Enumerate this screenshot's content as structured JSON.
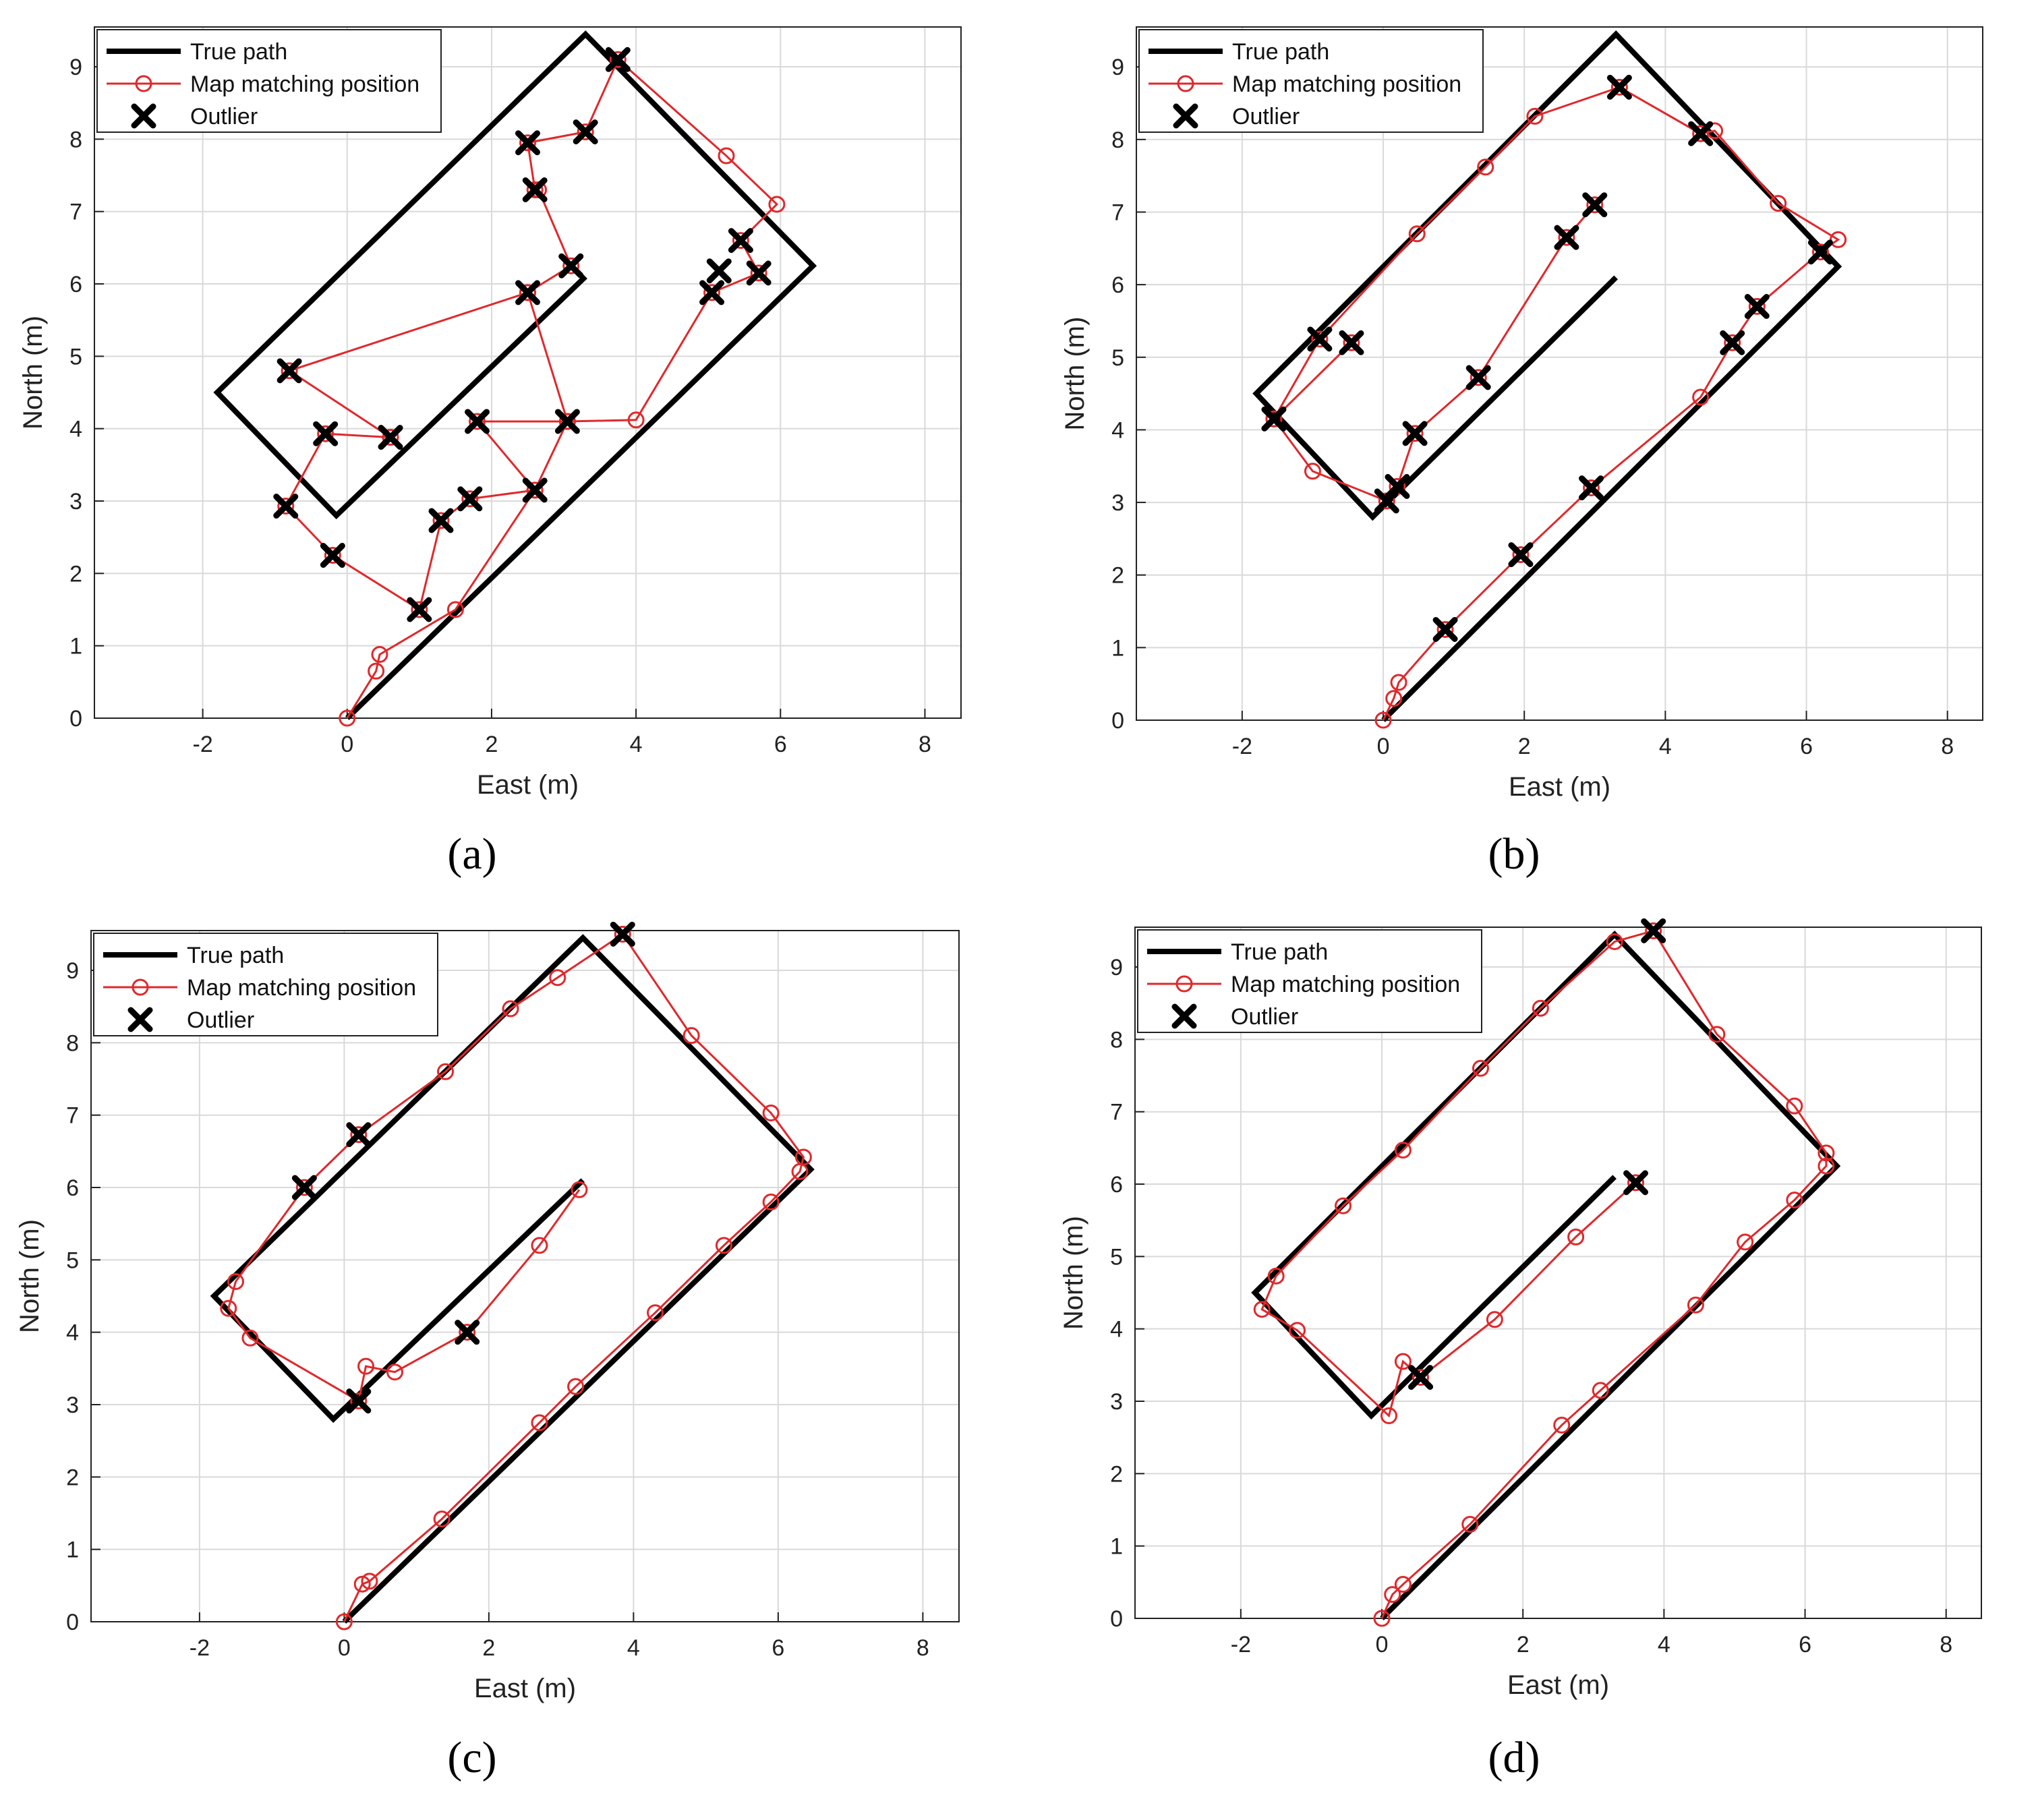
{
  "colors": {
    "true_path": "#000000",
    "map_matching": "#e0282b",
    "outlier": "#000000",
    "grid": "#d9d9d9",
    "axes": "#222222"
  },
  "true_path": [
    [
      0,
      0
    ],
    [
      6.45,
      6.25
    ],
    [
      3.3,
      9.45
    ],
    [
      -1.8,
      4.5
    ],
    [
      -0.15,
      2.8
    ],
    [
      3.3,
      6.1
    ]
  ],
  "chart_data": [
    {
      "panel": "(a)",
      "type": "line",
      "xlabel": "East (m)",
      "ylabel": "North (m)",
      "xlim": [
        -3.5,
        8.5
      ],
      "ylim": [
        0,
        9.55
      ],
      "xticks": [
        -2,
        0,
        2,
        4,
        6,
        8
      ],
      "yticks": [
        0,
        1,
        2,
        3,
        4,
        5,
        6,
        7,
        8,
        9
      ],
      "grid": true,
      "legend": "top-left",
      "legend_entries": [
        "True path",
        "Map matching position",
        "Outlier"
      ],
      "map_matching": [
        [
          0,
          0
        ],
        [
          0.4,
          0.65
        ],
        [
          0.45,
          0.88
        ],
        [
          1.5,
          1.5
        ],
        [
          2.6,
          3.15
        ],
        [
          1.8,
          4.1
        ],
        [
          3.05,
          4.1
        ],
        [
          4,
          4.12
        ],
        [
          5.05,
          5.88
        ],
        [
          5.7,
          6.15
        ],
        [
          5.45,
          6.6
        ],
        [
          5.95,
          7.1
        ],
        [
          5.25,
          7.77
        ],
        [
          3.75,
          9.1
        ],
        [
          3.3,
          8.1
        ],
        [
          2.5,
          7.95
        ],
        [
          2.6,
          7.3
        ],
        [
          2.65,
          7.3
        ],
        [
          3.1,
          6.25
        ],
        [
          2.5,
          5.88
        ],
        [
          -0.8,
          4.8
        ],
        [
          0.6,
          3.88
        ],
        [
          -0.3,
          3.93
        ],
        [
          -0.85,
          2.93
        ],
        [
          -0.2,
          2.25
        ],
        [
          1,
          1.5
        ],
        [
          1.3,
          2.73
        ],
        [
          1.7,
          3.03
        ],
        [
          2.6,
          3.15
        ],
        [
          3.05,
          4.1
        ],
        [
          2.5,
          5.88
        ]
      ],
      "outliers": [
        [
          1,
          1.5
        ],
        [
          1.3,
          2.73
        ],
        [
          1.7,
          3.03
        ],
        [
          2.6,
          3.15
        ],
        [
          1.8,
          4.1
        ],
        [
          3.05,
          4.1
        ],
        [
          5.05,
          5.88
        ],
        [
          5.15,
          6.18
        ],
        [
          5.7,
          6.15
        ],
        [
          5.45,
          6.6
        ],
        [
          3.75,
          9.1
        ],
        [
          3.3,
          8.1
        ],
        [
          2.5,
          7.95
        ],
        [
          2.6,
          7.3
        ],
        [
          3.1,
          6.25
        ],
        [
          2.5,
          5.88
        ],
        [
          -0.8,
          4.8
        ],
        [
          0.6,
          3.88
        ],
        [
          -0.3,
          3.93
        ],
        [
          -0.85,
          2.93
        ],
        [
          -0.2,
          2.25
        ]
      ]
    },
    {
      "panel": "(b)",
      "type": "line",
      "xlabel": "East (m)",
      "ylabel": "North (m)",
      "xlim": [
        -3.5,
        8.5
      ],
      "ylim": [
        0,
        9.55
      ],
      "xticks": [
        -2,
        0,
        2,
        4,
        6,
        8
      ],
      "yticks": [
        0,
        1,
        2,
        3,
        4,
        5,
        6,
        7,
        8,
        9
      ],
      "grid": true,
      "legend": "top-left",
      "legend_entries": [
        "True path",
        "Map matching position",
        "Outlier"
      ],
      "map_matching": [
        [
          0,
          0
        ],
        [
          0.15,
          0.3
        ],
        [
          0.22,
          0.52
        ],
        [
          0.88,
          1.25
        ],
        [
          1.95,
          2.28
        ],
        [
          2.95,
          3.2
        ],
        [
          4.5,
          4.45
        ],
        [
          4.95,
          5.2
        ],
        [
          5.3,
          5.7
        ],
        [
          6.2,
          6.45
        ],
        [
          6.45,
          6.62
        ],
        [
          5.6,
          7.12
        ],
        [
          4.7,
          8.12
        ],
        [
          4.5,
          8.08
        ],
        [
          3.35,
          8.72
        ],
        [
          2.15,
          8.32
        ],
        [
          1.45,
          7.62
        ],
        [
          0.48,
          6.7
        ],
        [
          -0.9,
          5.25
        ],
        [
          -1.55,
          4.15
        ],
        [
          -0.45,
          5.2
        ],
        [
          -1.55,
          4.15
        ],
        [
          -1,
          3.43
        ],
        [
          0.05,
          3.02
        ],
        [
          0.2,
          3.22
        ],
        [
          0.45,
          3.95
        ],
        [
          1.35,
          4.72
        ],
        [
          2.6,
          6.65
        ],
        [
          3,
          7.1
        ]
      ],
      "outliers": [
        [
          0.88,
          1.25
        ],
        [
          1.95,
          2.28
        ],
        [
          2.95,
          3.2
        ],
        [
          4.95,
          5.2
        ],
        [
          5.3,
          5.7
        ],
        [
          6.2,
          6.45
        ],
        [
          4.5,
          8.08
        ],
        [
          3.35,
          8.72
        ],
        [
          -0.9,
          5.25
        ],
        [
          -0.45,
          5.2
        ],
        [
          -1.55,
          4.15
        ],
        [
          0.05,
          3.02
        ],
        [
          0.2,
          3.22
        ],
        [
          0.45,
          3.95
        ],
        [
          1.35,
          4.72
        ],
        [
          2.6,
          6.65
        ],
        [
          3,
          7.1
        ]
      ]
    },
    {
      "panel": "(c)",
      "type": "line",
      "xlabel": "East (m)",
      "ylabel": "North (m)",
      "xlim": [
        -3.5,
        8.5
      ],
      "ylim": [
        0,
        9.55
      ],
      "xticks": [
        -2,
        0,
        2,
        4,
        6,
        8
      ],
      "yticks": [
        0,
        1,
        2,
        3,
        4,
        5,
        6,
        7,
        8,
        9
      ],
      "grid": true,
      "legend": "top-left",
      "legend_entries": [
        "True path",
        "Map matching position",
        "Outlier"
      ],
      "map_matching": [
        [
          0,
          0
        ],
        [
          0.25,
          0.52
        ],
        [
          0.35,
          0.56
        ],
        [
          1.35,
          1.42
        ],
        [
          2.7,
          2.75
        ],
        [
          3.2,
          3.25
        ],
        [
          4.3,
          4.27
        ],
        [
          5.25,
          5.2
        ],
        [
          5.9,
          5.8
        ],
        [
          6.3,
          6.22
        ],
        [
          6.35,
          6.42
        ],
        [
          5.9,
          7.03
        ],
        [
          4.8,
          8.1
        ],
        [
          3.85,
          9.5
        ],
        [
          2.95,
          8.9
        ],
        [
          2.3,
          8.47
        ],
        [
          1.4,
          7.6
        ],
        [
          0.2,
          6.73
        ],
        [
          -0.55,
          6
        ],
        [
          -1.5,
          4.7
        ],
        [
          -1.6,
          4.33
        ],
        [
          -1.3,
          3.92
        ],
        [
          0.2,
          3.05
        ],
        [
          0.3,
          3.53
        ],
        [
          0.7,
          3.45
        ],
        [
          1.7,
          4
        ],
        [
          2.7,
          5.2
        ],
        [
          3.25,
          5.97
        ]
      ],
      "outliers": [
        [
          3.85,
          9.5
        ],
        [
          0.2,
          6.73
        ],
        [
          -0.55,
          6
        ],
        [
          0.2,
          3.05
        ],
        [
          1.7,
          4
        ]
      ]
    },
    {
      "panel": "(d)",
      "type": "line",
      "xlabel": "East (m)",
      "ylabel": "North (m)",
      "xlim": [
        -3.5,
        8.5
      ],
      "ylim": [
        0,
        9.55
      ],
      "xticks": [
        -2,
        0,
        2,
        4,
        6,
        8
      ],
      "yticks": [
        0,
        1,
        2,
        3,
        4,
        5,
        6,
        7,
        8,
        9
      ],
      "grid": true,
      "legend": "top-left",
      "legend_entries": [
        "True path",
        "Map matching position",
        "Outlier"
      ],
      "map_matching": [
        [
          0,
          0
        ],
        [
          0.15,
          0.33
        ],
        [
          0.3,
          0.47
        ],
        [
          1.25,
          1.3
        ],
        [
          2.55,
          2.67
        ],
        [
          3.1,
          3.15
        ],
        [
          4.45,
          4.33
        ],
        [
          5.15,
          5.2
        ],
        [
          5.85,
          5.78
        ],
        [
          6.3,
          6.25
        ],
        [
          6.3,
          6.43
        ],
        [
          5.85,
          7.08
        ],
        [
          4.75,
          8.07
        ],
        [
          3.85,
          9.5
        ],
        [
          3.3,
          9.35
        ],
        [
          2.25,
          8.43
        ],
        [
          1.4,
          7.6
        ],
        [
          0.3,
          6.47
        ],
        [
          -0.55,
          5.7
        ],
        [
          -1.5,
          4.73
        ],
        [
          -1.7,
          4.27
        ],
        [
          -1.2,
          3.98
        ],
        [
          0.1,
          2.8
        ],
        [
          0.3,
          3.55
        ],
        [
          0.55,
          3.33
        ],
        [
          1.6,
          4.13
        ],
        [
          2.75,
          5.27
        ],
        [
          3.6,
          6.02
        ]
      ],
      "outliers": [
        [
          3.85,
          9.5
        ],
        [
          0.55,
          3.33
        ],
        [
          3.6,
          6.02
        ]
      ]
    }
  ]
}
